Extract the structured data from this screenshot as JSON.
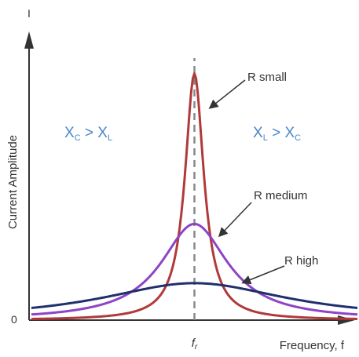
{
  "chart_data": {
    "type": "line",
    "title": "",
    "xlabel": "Frequency, f",
    "ylabel": "Current Amplitude",
    "y_axis_symbol": "I",
    "y_origin_label": "0",
    "x_marker_label": "fr",
    "xlim": [
      -1,
      1
    ],
    "ylim": [
      0,
      1.05
    ],
    "grid": false,
    "series": [
      {
        "name": "R small",
        "color": "#b03a3a",
        "peak": 1.0,
        "width": 0.07,
        "floor": 0.0
      },
      {
        "name": "R medium",
        "color": "#8e44c4",
        "peak": 0.39,
        "width": 0.25,
        "floor": 0.0
      },
      {
        "name": "R high",
        "color": "#1f2f6b",
        "peak": 0.15,
        "width": 0.7,
        "floor": 0.0
      }
    ],
    "annotations": [
      {
        "id": "left-region",
        "main": "X",
        "sub1": "C",
        "op": " > ",
        "main2": "X",
        "sub2": "L"
      },
      {
        "id": "right-region",
        "main": "X",
        "sub1": "L",
        "op": " > ",
        "main2": "X",
        "sub2": "C"
      }
    ],
    "dashed_marker_x": 0
  }
}
